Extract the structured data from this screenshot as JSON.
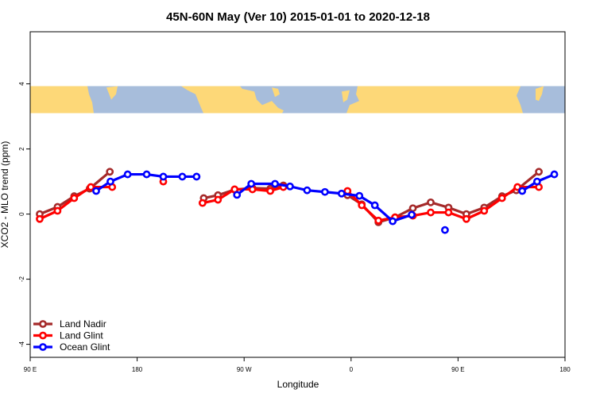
{
  "chart_data": {
    "type": "line",
    "title": "45N-60N May (Ver 10)   2015-01-01 to 2020-12-18",
    "xlabel": "Longitude",
    "ylabel": "XCO2 - MLO trend (ppm)",
    "xlim": [
      90,
      540
    ],
    "ylim": [
      -4.4,
      5.6
    ],
    "x_ticks": [
      {
        "value": 90,
        "label": "90 E"
      },
      {
        "value": 180,
        "label": "180"
      },
      {
        "value": 270,
        "label": "90 W"
      },
      {
        "value": 360,
        "label": "0"
      },
      {
        "value": 450,
        "label": "90 E"
      },
      {
        "value": 540,
        "label": "180"
      }
    ],
    "y_ticks": [
      {
        "value": 4,
        "label": "4"
      },
      {
        "value": 2,
        "label": "2"
      },
      {
        "value": 0,
        "label": "0"
      },
      {
        "value": -2,
        "label": "-2"
      },
      {
        "value": -4,
        "label": "-4"
      }
    ],
    "grid": false,
    "legend_position": "bottom-left",
    "map_band": {
      "ymin": 3.1,
      "ymax": 3.93,
      "land_color": "#FDD878",
      "ocean_color": "#A7BDDB"
    },
    "series": [
      {
        "name": "Land Nadir",
        "color": "#A52A2A",
        "segments": [
          [
            [
              98,
              0.0
            ],
            [
              113,
              0.22
            ],
            [
              127,
              0.55
            ],
            [
              140,
              0.78
            ],
            [
              157,
              1.3
            ]
          ],
          [
            [
              236,
              0.49
            ],
            [
              248,
              0.58
            ],
            [
              262,
              0.75
            ],
            [
              277,
              0.8
            ],
            [
              292,
              0.78
            ],
            [
              303,
              0.88
            ]
          ],
          [
            [
              357,
              0.58
            ],
            [
              369,
              0.3
            ],
            [
              383,
              -0.25
            ],
            [
              397,
              -0.1
            ],
            [
              412,
              0.18
            ],
            [
              427,
              0.36
            ],
            [
              442,
              0.2
            ],
            [
              457,
              0.0
            ],
            [
              472,
              0.2
            ],
            [
              487,
              0.55
            ],
            [
              499,
              0.73
            ],
            [
              518,
              1.3
            ]
          ]
        ]
      },
      {
        "name": "Land Glint",
        "color": "#FF0000",
        "segments": [
          [
            [
              98,
              -0.15
            ],
            [
              113,
              0.1
            ],
            [
              127,
              0.49
            ],
            [
              141,
              0.83
            ],
            [
              159,
              0.83
            ]
          ],
          [
            [
              202,
              1.0
            ]
          ],
          [
            [
              235,
              0.34
            ],
            [
              248,
              0.44
            ],
            [
              262,
              0.76
            ],
            [
              277,
              0.76
            ],
            [
              292,
              0.71
            ],
            [
              303,
              0.83
            ]
          ],
          [
            [
              357,
              0.71
            ],
            [
              369,
              0.27
            ],
            [
              383,
              -0.2
            ],
            [
              397,
              -0.1
            ],
            [
              412,
              -0.05
            ],
            [
              427,
              0.05
            ],
            [
              442,
              0.05
            ],
            [
              457,
              -0.15
            ],
            [
              472,
              0.1
            ],
            [
              487,
              0.49
            ],
            [
              500,
              0.83
            ],
            [
              518,
              0.83
            ]
          ]
        ]
      },
      {
        "name": "Ocean Glint",
        "color": "#0000FF",
        "segments": [
          [
            [
              145.5,
              0.71
            ],
            [
              157.5,
              1.0
            ],
            [
              172,
              1.22
            ],
            [
              188,
              1.22
            ],
            [
              202,
              1.15
            ],
            [
              218,
              1.15
            ],
            [
              230,
              1.15
            ]
          ],
          [
            [
              264,
              0.59
            ],
            [
              276,
              0.93
            ],
            [
              296,
              0.93
            ],
            [
              308.6,
              0.85
            ],
            [
              323,
              0.73
            ],
            [
              338,
              0.68
            ],
            [
              352,
              0.63
            ],
            [
              367,
              0.56
            ],
            [
              380,
              0.27
            ],
            [
              395,
              -0.22
            ],
            [
              411,
              -0.02
            ]
          ],
          [
            [
              439,
              -0.49
            ]
          ],
          [
            [
              504,
              0.71
            ],
            [
              516.5,
              1.0
            ],
            [
              531,
              1.22
            ]
          ]
        ]
      }
    ]
  }
}
